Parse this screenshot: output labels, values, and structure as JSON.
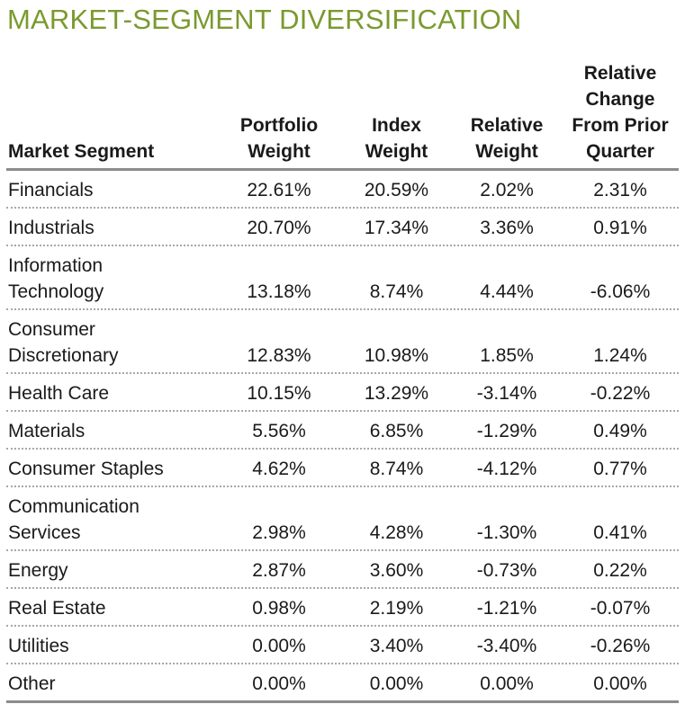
{
  "title": "MARKET-SEGMENT DIVERSIFICATION",
  "colors": {
    "title": "#7a9a2e",
    "rule": "#8c8c8c",
    "dotted_rule": "#a8a8a8"
  },
  "chart_data": {
    "type": "table",
    "title": "MARKET-SEGMENT DIVERSIFICATION",
    "columns": [
      "Market Segment",
      "Portfolio\nWeight",
      "Index\nWeight",
      "Relative\nWeight",
      "Relative\nChange\nFrom Prior\nQuarter"
    ],
    "rows": [
      [
        "Financials",
        "22.61%",
        "20.59%",
        "2.02%",
        "2.31%"
      ],
      [
        "Industrials",
        "20.70%",
        "17.34%",
        "3.36%",
        "0.91%"
      ],
      [
        "Information\nTechnology",
        "13.18%",
        "8.74%",
        "4.44%",
        "-6.06%"
      ],
      [
        "Consumer\nDiscretionary",
        "12.83%",
        "10.98%",
        "1.85%",
        "1.24%"
      ],
      [
        "Health Care",
        "10.15%",
        "13.29%",
        "-3.14%",
        "-0.22%"
      ],
      [
        "Materials",
        "5.56%",
        "6.85%",
        "-1.29%",
        "0.49%"
      ],
      [
        "Consumer Staples",
        "4.62%",
        "8.74%",
        "-4.12%",
        "0.77%"
      ],
      [
        "Communication\nServices",
        "2.98%",
        "4.28%",
        "-1.30%",
        "0.41%"
      ],
      [
        "Energy",
        "2.87%",
        "3.60%",
        "-0.73%",
        "0.22%"
      ],
      [
        "Real Estate",
        "0.98%",
        "2.19%",
        "-1.21%",
        "-0.07%"
      ],
      [
        "Utilities",
        "0.00%",
        "3.40%",
        "-3.40%",
        "-0.26%"
      ],
      [
        "Other",
        "0.00%",
        "0.00%",
        "0.00%",
        "0.00%"
      ]
    ]
  }
}
